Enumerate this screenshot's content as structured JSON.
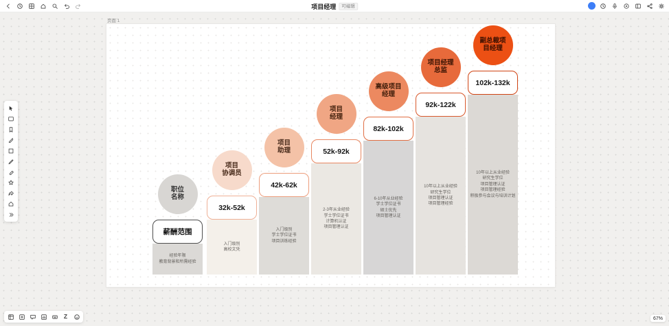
{
  "topbar": {
    "title": "项目经理",
    "badge": "可编辑",
    "left_tools": [
      {
        "name": "back"
      },
      {
        "name": "clock"
      },
      {
        "name": "board"
      },
      {
        "name": "home"
      },
      {
        "name": "search"
      },
      {
        "name": "undo"
      },
      {
        "name": "redo"
      }
    ],
    "right_tools": [
      {
        "name": "history"
      },
      {
        "name": "mic"
      },
      {
        "name": "record"
      },
      {
        "name": "layout"
      },
      {
        "name": "share"
      },
      {
        "name": "settings"
      }
    ]
  },
  "left_toolbar": [
    {
      "name": "select"
    },
    {
      "name": "card"
    },
    {
      "name": "bookmark"
    },
    {
      "name": "pen"
    },
    {
      "name": "shape"
    },
    {
      "name": "pencil"
    },
    {
      "name": "eraser"
    },
    {
      "name": "star"
    },
    {
      "name": "share-arrow"
    },
    {
      "name": "home-frame"
    },
    {
      "name": "more"
    }
  ],
  "bottom_toolbar": [
    {
      "name": "frames"
    },
    {
      "name": "insert"
    },
    {
      "name": "comment"
    },
    {
      "name": "chart"
    },
    {
      "name": "keyboard"
    },
    {
      "name": "z",
      "glyph": "Z"
    },
    {
      "name": "emoji"
    }
  ],
  "canvas": {
    "frame_label": "页面 1",
    "zoom": "67%"
  },
  "infographic": {
    "accent_color": "#ec5014",
    "steps": [
      {
        "circle_label": "职位\n名称",
        "circle_color": "#d8d6d3",
        "text_color": "#333333",
        "salary": "薪酬范围",
        "border_color": "#4d4d4d",
        "bar_color": "#dbd9d6",
        "requirements": "经验年限\n教育背景和所需经验"
      },
      {
        "circle_label": "项目\n协调员",
        "circle_color": "#f7dacb",
        "text_color": "#4a2c1c",
        "salary": "32k-52k",
        "border_color": "#efb096",
        "bar_color": "#f4f0ea",
        "requirements": "入门级别\n高校文凭"
      },
      {
        "circle_label": "项目\n助理",
        "circle_color": "#f4c2a7",
        "text_color": "#4a2c1c",
        "salary": "42k-62k",
        "border_color": "#ec9d7c",
        "bar_color": "#dedcd8",
        "requirements": "入门级别\n学士学位证书\n项目训练经验"
      },
      {
        "circle_label": "项目\n经理",
        "circle_color": "#f0a684",
        "text_color": "#46230f",
        "salary": "52k-92k",
        "border_color": "#e78660",
        "bar_color": "#ebe8e3",
        "requirements": "2-3年从业经验\n学士学位证书\n计算机认证\n项目管理认证"
      },
      {
        "circle_label": "高级项目\n经理",
        "circle_color": "#ec8960",
        "text_color": "#3f1d0a",
        "salary": "82k-102k",
        "border_color": "#e06e43",
        "bar_color": "#d7d6d6",
        "requirements": "6-10年从业经验\n学士学位证书\n硕士优先\n项目管理认证"
      },
      {
        "circle_label": "项目经理\n总监",
        "circle_color": "#e76a3b",
        "text_color": "#3a1404",
        "salary": "92k-122k",
        "border_color": "#d8572a",
        "bar_color": "#e6e3df",
        "requirements": "10年以上从业经验\n研究生学位\n项目管理认证\n项目管理经验"
      },
      {
        "circle_label": "副总裁项\n目经理",
        "circle_color": "#ec5014",
        "text_color": "#380f01",
        "salary": "102k-132k",
        "border_color": "#cf4211",
        "bar_color": "#dcd9d5",
        "requirements": "10年以上从业经验\n研究生学位\n项目管理认证\n项目管理经验\n积极参与会议与培训计划"
      }
    ]
  }
}
